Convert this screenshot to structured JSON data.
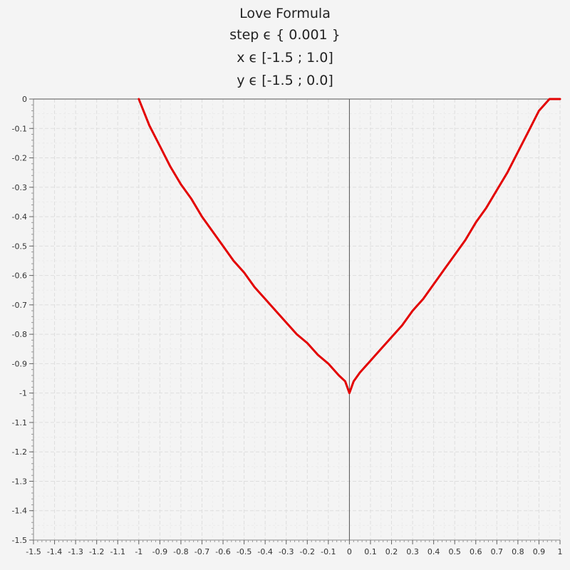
{
  "chart_data": {
    "type": "line",
    "title": "Love Formula",
    "subtitle_lines": [
      "step ϵ { 0.001 }",
      "x ϵ [-1.5 ; 1.0]",
      "y ϵ [-1.5 ; 0.0]"
    ],
    "xlabel": "",
    "ylabel": "",
    "xlim": [
      -1.5,
      1.0
    ],
    "ylim": [
      -1.5,
      0.0
    ],
    "x_ticks": [
      -1.5,
      -1.4,
      -1.3,
      -1.2,
      -1.1,
      -1,
      -0.9,
      -0.8,
      -0.7,
      -0.6,
      -0.5,
      -0.4,
      -0.3,
      -0.2,
      -0.1,
      0,
      0.1,
      0.2,
      0.3,
      0.4,
      0.5,
      0.6,
      0.7,
      0.8,
      0.9,
      1
    ],
    "y_ticks": [
      0,
      -0.1,
      -0.2,
      -0.3,
      -0.4,
      -0.5,
      -0.6,
      -0.7,
      -0.8,
      -0.9,
      -1,
      -1.1,
      -1.2,
      -1.3,
      -1.4,
      -1.5
    ],
    "grid": true,
    "legend": "none",
    "series": [
      {
        "color": "#e30000",
        "x": [
          -1,
          -0.95,
          -0.9,
          -0.85,
          -0.8,
          -0.75,
          -0.7,
          -0.65,
          -0.6,
          -0.55,
          -0.5,
          -0.45,
          -0.4,
          -0.35,
          -0.3,
          -0.25,
          -0.2,
          -0.15,
          -0.1,
          -0.05,
          -0.02,
          -0.01,
          0,
          0.01,
          0.02,
          0.05,
          0.1,
          0.15,
          0.2,
          0.25,
          0.3,
          0.35,
          0.4,
          0.45,
          0.5,
          0.55,
          0.6,
          0.65,
          0.7,
          0.75,
          0.8,
          0.85,
          0.9,
          0.95,
          1
        ],
        "y": [
          0,
          -0.09,
          -0.16,
          -0.23,
          -0.29,
          -0.34,
          -0.4,
          -0.45,
          -0.5,
          -0.55,
          -0.59,
          -0.64,
          -0.68,
          -0.72,
          -0.76,
          -0.8,
          -0.83,
          -0.87,
          -0.9,
          -0.94,
          -0.96,
          -0.98,
          -1.0,
          -0.98,
          -0.96,
          -0.93,
          -0.89,
          -0.85,
          -0.81,
          -0.77,
          -0.72,
          -0.68,
          -0.63,
          -0.58,
          -0.53,
          -0.48,
          -0.42,
          -0.37,
          -0.31,
          -0.25,
          -0.18,
          -0.11,
          -0.04,
          0.0,
          0.0
        ]
      }
    ]
  }
}
